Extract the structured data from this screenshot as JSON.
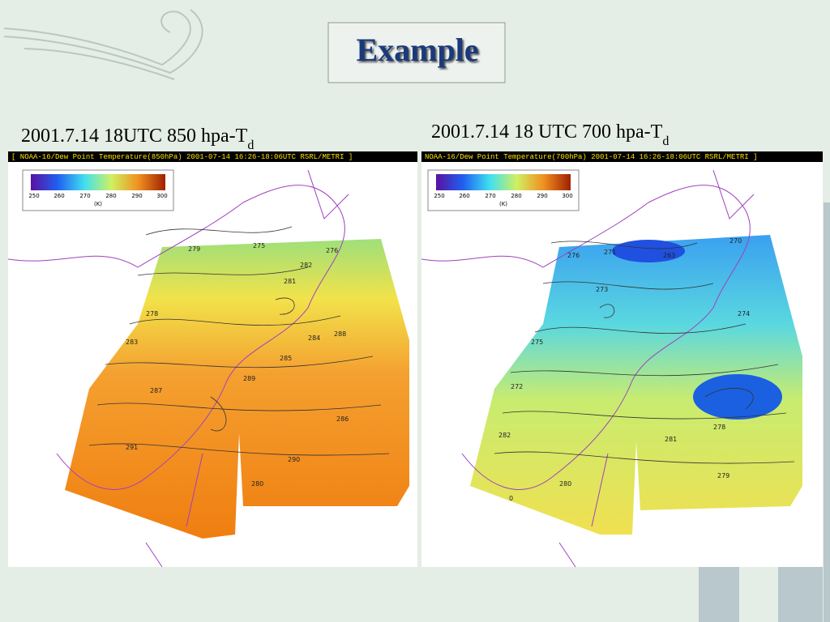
{
  "title": "Example",
  "panels": [
    {
      "caption": {
        "text": "2001.7.14 18UTC 850 hpa-T",
        "subscript": "d"
      },
      "header": "[ NOAA-16/Dew Point Temperature(850hPa) 2001-07-14 16:26-18:06UTC RSRL/METRI ]",
      "colorbar": {
        "ticks": [
          "250",
          "260",
          "270",
          "280",
          "290",
          "300"
        ],
        "unit": "(K)"
      },
      "contour_labels": [
        "279",
        "275",
        "276",
        "278",
        "281",
        "282",
        "284",
        "283",
        "288",
        "285",
        "289",
        "287",
        "286",
        "290",
        "291",
        "280"
      ]
    },
    {
      "caption": {
        "text": "2001.7.14 18 UTC 700 hpa-T",
        "subscript": "d"
      },
      "header": "NOAA-16/Dew Point Temperature(700hPa) 2001-07-14 16:26-18:06UTC RSRL/METRI ]",
      "colorbar": {
        "ticks": [
          "250",
          "260",
          "270",
          "280",
          "290",
          "300"
        ],
        "unit": "(K)"
      },
      "contour_labels": [
        "276",
        "271",
        "270",
        "273",
        "274",
        "275",
        "263",
        "272",
        "278",
        "279",
        "280",
        "281",
        "282",
        "0"
      ]
    }
  ]
}
